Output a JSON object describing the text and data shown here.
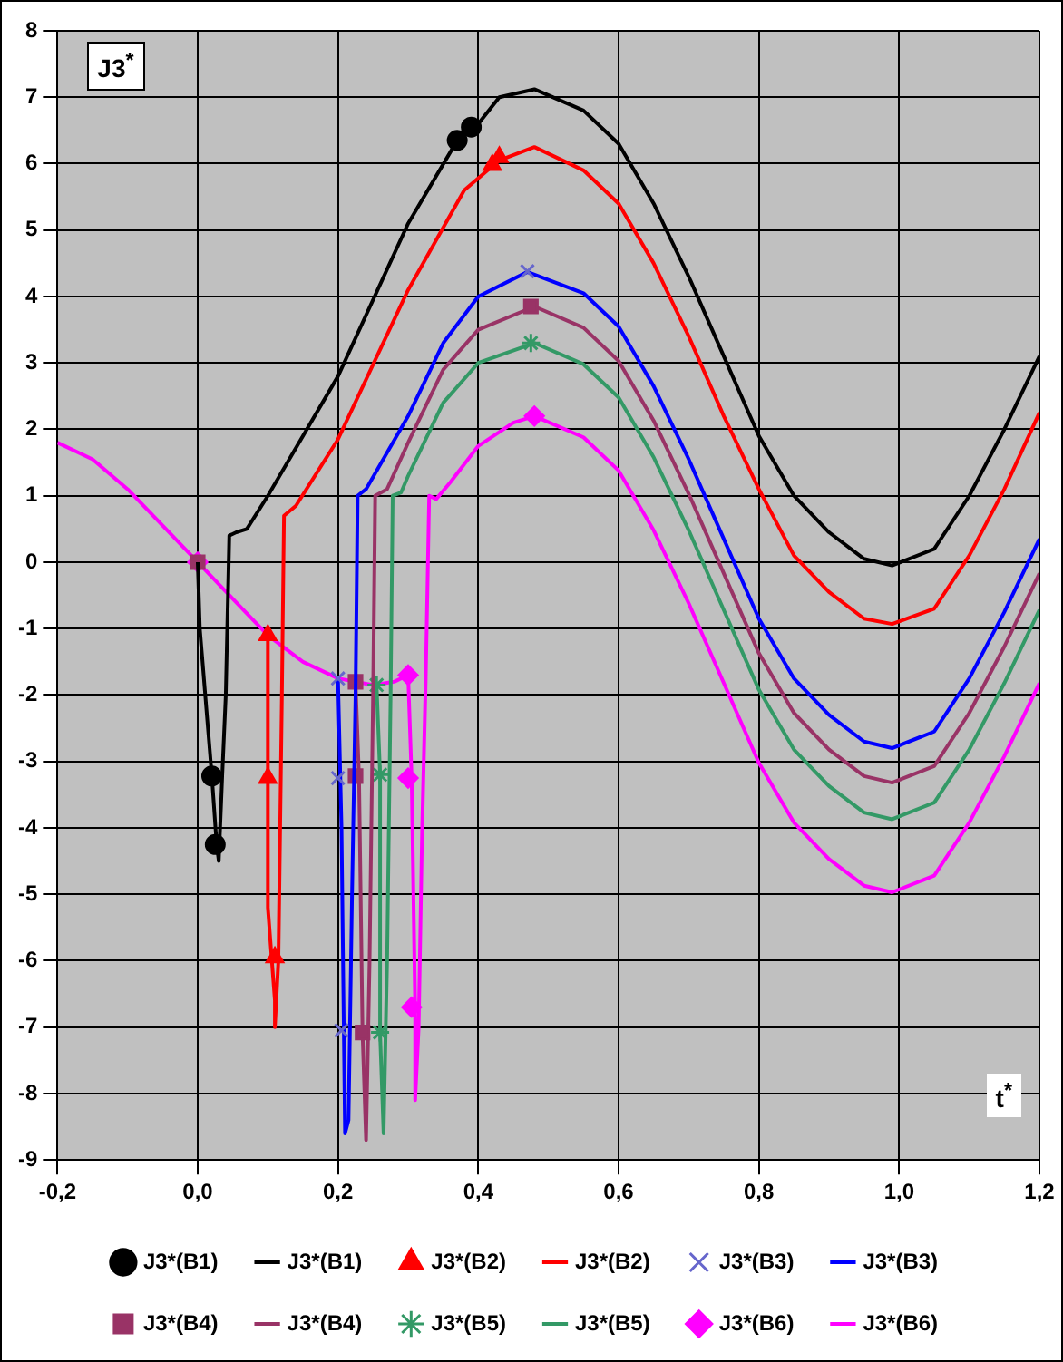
{
  "chart_data": {
    "type": "line",
    "ylabel": "J3$^{*}$",
    "xlabel": "t$^{*}$",
    "xlim": [
      -0.2,
      1.2
    ],
    "xticks": [
      {
        "value": -0.2,
        "label": "-0,2"
      },
      {
        "value": 0,
        "label": "0,0"
      },
      {
        "value": 0.2,
        "label": "0,2"
      },
      {
        "value": 0.4,
        "label": "0,4"
      },
      {
        "value": 0.6,
        "label": "0,6"
      },
      {
        "value": 0.8,
        "label": "0,8"
      },
      {
        "value": 1.0,
        "label": "1,0"
      },
      {
        "value": 1.2,
        "label": "1,2"
      }
    ],
    "ylim": [
      -9,
      8
    ],
    "yticks": [
      -9,
      -8,
      -7,
      -6,
      -5,
      -4,
      -3,
      -2,
      -1,
      0,
      1,
      2,
      3,
      4,
      5,
      6,
      7,
      8
    ],
    "grid": true,
    "legend": "bottom",
    "series": [
      {
        "name": "J3*(B1)",
        "type": "scatter",
        "marker": "circle",
        "color": "#000000",
        "x": [
          0.02,
          0.025,
          0.37,
          0.39
        ],
        "values": [
          -3.22,
          -4.25,
          6.35,
          6.55
        ]
      },
      {
        "name": "J3*(B1)",
        "type": "line",
        "marker": "none",
        "color": "#000000",
        "x": [
          0,
          0.003,
          0.02,
          0.027,
          0.03,
          0.035,
          0.04,
          0.045,
          0.055,
          0.07,
          0.1,
          0.2,
          0.3,
          0.37,
          0.4,
          0.43,
          0.48,
          0.55,
          0.6,
          0.65,
          0.7,
          0.75,
          0.8,
          0.85,
          0.9,
          0.95,
          0.99,
          1.05,
          1.1,
          1.15,
          1.2
        ],
        "values": [
          0,
          -1,
          -3.2,
          -4.25,
          -4.5,
          -3.2,
          -2,
          0.4,
          0.45,
          0.5,
          1.0,
          2.8,
          5.1,
          6.35,
          6.6,
          7.0,
          7.12,
          6.8,
          6.3,
          5.4,
          4.3,
          3.1,
          1.9,
          1.0,
          0.45,
          0.05,
          -0.05,
          0.2,
          1.0,
          2.0,
          3.1
        ]
      },
      {
        "name": "J3*(B2)",
        "type": "scatter",
        "marker": "triangle",
        "color": "#ff0000",
        "x": [
          0.1,
          0.1,
          0.11,
          0.42,
          0.43
        ],
        "values": [
          -1.1,
          -3.25,
          -5.95,
          5.98,
          6.1
        ]
      },
      {
        "name": "J3*(B2)",
        "type": "line",
        "marker": "none",
        "color": "#ff0000",
        "x": [
          0.1,
          0.1,
          0.11,
          0.11,
          0.115,
          0.12,
          0.123,
          0.14,
          0.2,
          0.3,
          0.38,
          0.43,
          0.48,
          0.55,
          0.6,
          0.65,
          0.7,
          0.75,
          0.8,
          0.85,
          0.9,
          0.95,
          0.99,
          1.05,
          1.1,
          1.15,
          1.2
        ],
        "values": [
          -1.1,
          -5.2,
          -6.6,
          -7.0,
          -6.0,
          -2,
          0.7,
          0.85,
          1.85,
          4.1,
          5.6,
          6.05,
          6.25,
          5.9,
          5.4,
          4.5,
          3.4,
          2.2,
          1.1,
          0.1,
          -0.45,
          -0.85,
          -0.93,
          -0.7,
          0.1,
          1.1,
          2.25
        ]
      },
      {
        "name": "J3*(B3)",
        "type": "scatter",
        "marker": "cross",
        "color": "#6666cc",
        "x": [
          0.2,
          0.2,
          0.205,
          0.47
        ],
        "values": [
          -1.75,
          -3.25,
          -7.05,
          4.38
        ]
      },
      {
        "name": "J3*(B3)",
        "type": "line",
        "marker": "none",
        "color": "#0000ff",
        "x": [
          0.2,
          0.205,
          0.21,
          0.215,
          0.22,
          0.225,
          0.228,
          0.24,
          0.3,
          0.35,
          0.4,
          0.47,
          0.55,
          0.6,
          0.65,
          0.7,
          0.75,
          0.8,
          0.85,
          0.9,
          0.95,
          0.99,
          1.05,
          1.1,
          1.15,
          1.2
        ],
        "values": [
          -1.75,
          -4,
          -8.6,
          -8.4,
          -5,
          -2,
          1.0,
          1.1,
          2.2,
          3.3,
          4.0,
          4.37,
          4.05,
          3.55,
          2.65,
          1.55,
          0.35,
          -0.85,
          -1.75,
          -2.3,
          -2.7,
          -2.8,
          -2.55,
          -1.75,
          -0.75,
          0.35
        ]
      },
      {
        "name": "J3*(B4)",
        "type": "scatter",
        "marker": "square",
        "color": "#993366",
        "x": [
          0,
          0.225,
          0.225,
          0.235,
          0.475
        ],
        "values": [
          0,
          -1.8,
          -3.22,
          -7.08,
          3.85
        ]
      },
      {
        "name": "J3*(B4)",
        "type": "line",
        "marker": "none",
        "color": "#993366",
        "x": [
          0.225,
          0.23,
          0.235,
          0.24,
          0.245,
          0.25,
          0.253,
          0.27,
          0.3,
          0.35,
          0.4,
          0.48,
          0.55,
          0.6,
          0.65,
          0.7,
          0.75,
          0.8,
          0.85,
          0.9,
          0.95,
          0.99,
          1.05,
          1.1,
          1.15,
          1.2
        ],
        "values": [
          -1.8,
          -3.25,
          -7.1,
          -8.7,
          -6,
          -2,
          1.0,
          1.1,
          1.8,
          2.9,
          3.5,
          3.85,
          3.53,
          3.03,
          2.13,
          1.03,
          -0.17,
          -1.37,
          -2.27,
          -2.82,
          -3.22,
          -3.32,
          -3.07,
          -2.27,
          -1.27,
          -0.17
        ]
      },
      {
        "name": "J3*(B5)",
        "type": "scatter",
        "color": "#339966",
        "x": [
          0.255,
          0.26,
          0.26,
          0.475
        ],
        "values": [
          -1.85,
          -3.2,
          -7.08,
          3.3
        ]
      },
      {
        "name": "J3*(B5)",
        "type": "line",
        "marker": "none",
        "color": "#339966",
        "x": [
          0.255,
          0.26,
          0.26,
          0.265,
          0.27,
          0.275,
          0.278,
          0.29,
          0.3,
          0.35,
          0.4,
          0.48,
          0.55,
          0.6,
          0.65,
          0.7,
          0.75,
          0.8,
          0.85,
          0.9,
          0.95,
          0.99,
          1.05,
          1.1,
          1.15,
          1.2
        ],
        "values": [
          -1.85,
          -3.2,
          -7.1,
          -8.6,
          -6,
          -2,
          1.0,
          1.05,
          1.3,
          2.4,
          3.0,
          3.3,
          2.98,
          2.48,
          1.58,
          0.48,
          -0.72,
          -1.92,
          -2.82,
          -3.37,
          -3.77,
          -3.87,
          -3.62,
          -2.82,
          -1.82,
          -0.72
        ]
      },
      {
        "name": "J3*(B6)",
        "type": "scatter",
        "marker": "diamond",
        "color": "#ff00ff",
        "x": [
          0,
          0.3,
          0.3,
          0.305,
          0.48
        ],
        "values": [
          0,
          -1.7,
          -3.25,
          -6.7,
          2.2
        ]
      },
      {
        "name": "J3*(B6)",
        "type": "line",
        "marker": "none",
        "color": "#ff00ff",
        "x": [
          -0.2,
          -0.15,
          -0.1,
          -0.05,
          0,
          0.05,
          0.1,
          0.15,
          0.2,
          0.25,
          0.28,
          0.3,
          0.305,
          0.31,
          0.31,
          0.315,
          0.32,
          0.325,
          0.33,
          0.34,
          0.36,
          0.4,
          0.45,
          0.48,
          0.55,
          0.6,
          0.65,
          0.7,
          0.75,
          0.8,
          0.85,
          0.9,
          0.95,
          0.99,
          1.05,
          1.1,
          1.15,
          1.2
        ],
        "values": [
          1.8,
          1.55,
          1.1,
          0.55,
          0,
          -0.55,
          -1.1,
          -1.5,
          -1.75,
          -1.85,
          -1.8,
          -1.7,
          -3.25,
          -6.7,
          -8.1,
          -7,
          -4,
          -1.8,
          1.0,
          0.95,
          1.2,
          1.75,
          2.1,
          2.2,
          1.88,
          1.38,
          0.48,
          -0.62,
          -1.82,
          -3.02,
          -3.92,
          -4.47,
          -4.87,
          -4.97,
          -4.72,
          -3.92,
          -2.92,
          -1.82
        ]
      }
    ]
  }
}
